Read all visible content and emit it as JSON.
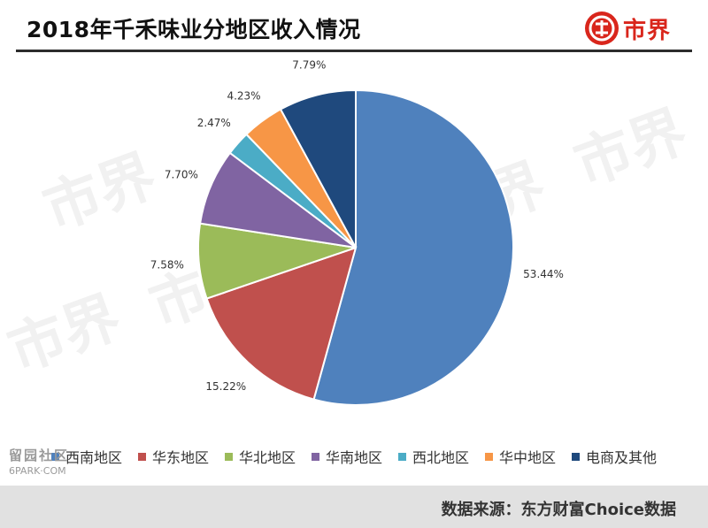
{
  "header": {
    "title": "2018年千禾味业分地区收入情况"
  },
  "brand": {
    "logo_text": "市界",
    "accent": "#d9261c"
  },
  "watermark": {
    "text": "市界",
    "corner_text": "留园社区",
    "corner_sub": "6PARK·COM"
  },
  "chart_data": {
    "type": "pie",
    "title": "2018年千禾味业分地区收入情况",
    "start_angle_deg": 0,
    "direction": "clockwise",
    "slices": [
      {
        "name": "西南地区",
        "value": 53.44,
        "label": "53.44%",
        "color": "#4f81bd"
      },
      {
        "name": "华东地区",
        "value": 15.22,
        "label": "15.22%",
        "color": "#c0504d"
      },
      {
        "name": "华北地区",
        "value": 7.58,
        "label": "7.58%",
        "color": "#9bbb59"
      },
      {
        "name": "华南地区",
        "value": 7.7,
        "label": "7.70%",
        "color": "#8064a2"
      },
      {
        "name": "西北地区",
        "value": 2.47,
        "label": "2.47%",
        "color": "#4bacc6"
      },
      {
        "name": "华中地区",
        "value": 4.23,
        "label": "4.23%",
        "color": "#f79646"
      },
      {
        "name": "电商及其他",
        "value": 7.79,
        "label": "7.79%",
        "color": "#1f497d"
      }
    ],
    "legend_position": "bottom"
  },
  "footer": {
    "source": "数据来源：东方财富Choice数据"
  }
}
